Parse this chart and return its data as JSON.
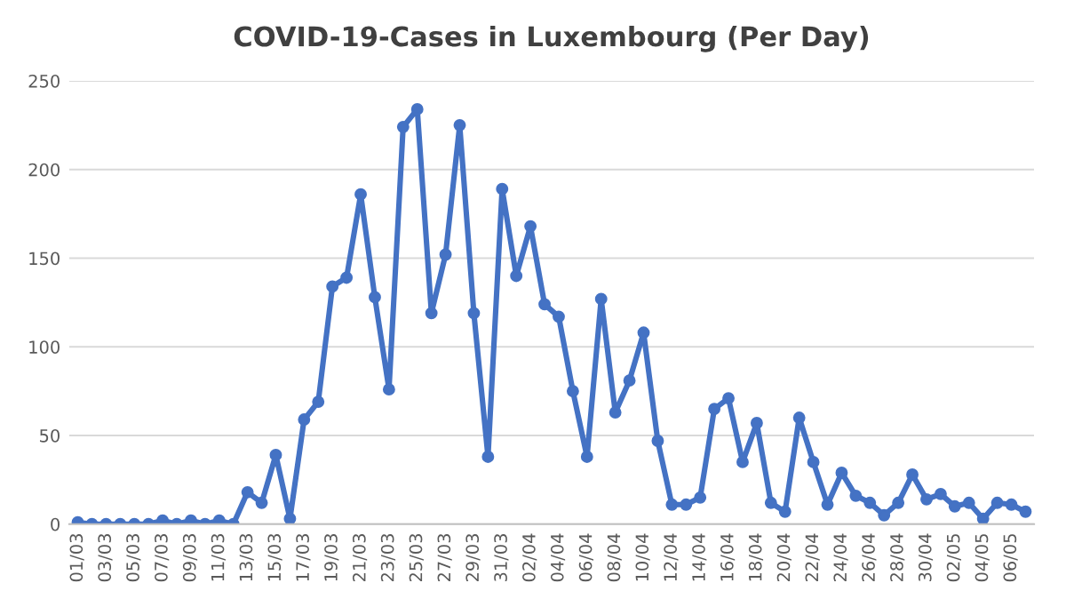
{
  "chart_data": {
    "type": "line",
    "title": "COVID-19-Cases in Luxembourg (Per Day)",
    "categories": [
      "01/03",
      null,
      "03/03",
      null,
      "05/03",
      null,
      "07/03",
      null,
      "09/03",
      null,
      "11/03",
      null,
      "13/03",
      null,
      "15/03",
      null,
      "17/03",
      null,
      "19/03",
      null,
      "21/03",
      null,
      "23/03",
      null,
      "25/03",
      null,
      "27/03",
      null,
      "29/03",
      null,
      "31/03",
      null,
      "02/04",
      null,
      "04/04",
      null,
      "06/04",
      null,
      "08/04",
      null,
      "10/04",
      null,
      "12/04",
      null,
      "14/04",
      null,
      "16/04",
      null,
      "18/04",
      null,
      "20/04",
      null,
      "22/04",
      null,
      "24/04",
      null,
      "26/04",
      null,
      "28/04",
      null,
      "30/04",
      null,
      "02/05",
      null,
      "04/05",
      null,
      "06/05",
      null
    ],
    "series": [
      {
        "color": "#4472c4",
        "values": [
          1,
          0,
          0,
          0,
          0,
          0,
          2,
          0,
          2,
          0,
          2,
          0,
          18,
          12,
          39,
          3,
          59,
          69,
          134,
          139,
          186,
          128,
          76,
          224,
          234,
          119,
          152,
          225,
          119,
          38,
          189,
          140,
          168,
          124,
          117,
          75,
          38,
          127,
          63,
          81,
          108,
          47,
          11,
          11,
          15,
          65,
          71,
          35,
          57,
          12,
          7,
          60,
          35,
          11,
          29,
          16,
          12,
          5,
          12,
          28,
          14,
          17,
          10,
          12,
          3,
          12,
          11,
          7
        ]
      }
    ],
    "ylim": [
      0,
      250
    ],
    "yticks": [
      0,
      50,
      100,
      150,
      200,
      250
    ],
    "grid": "y",
    "marker": "circle",
    "line_style": "solid"
  }
}
